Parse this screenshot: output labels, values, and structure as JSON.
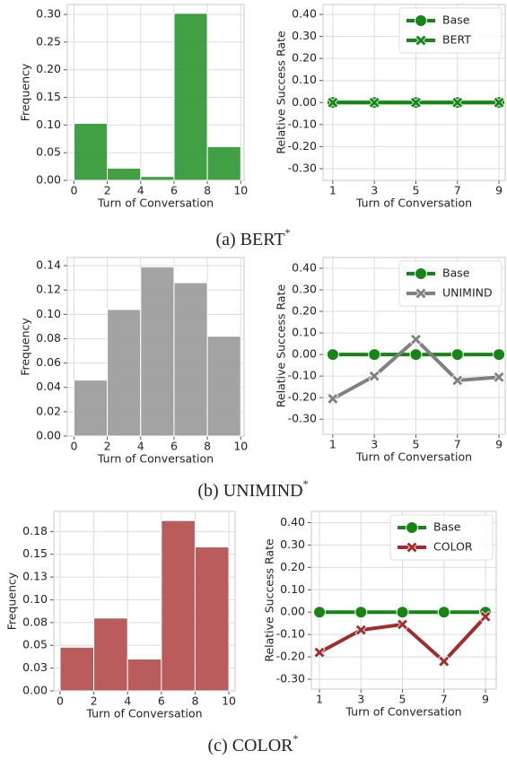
{
  "chart_data": [
    {
      "type": "histogram",
      "xlabel": "Turn of Conversation",
      "ylabel": "Frequency",
      "bins": [
        0,
        2,
        4,
        6,
        8,
        10
      ],
      "values": [
        0.103,
        0.022,
        0.007,
        0.302,
        0.061
      ],
      "color": "#2e9630",
      "xlim": [
        -0.4,
        10.2
      ],
      "ylim": [
        0,
        0.318
      ],
      "xticks": [
        0,
        2,
        4,
        6,
        8,
        10
      ],
      "yticks": [
        {
          "value": 0,
          "label": "0.00"
        },
        {
          "value": 0.05,
          "label": "0.05"
        },
        {
          "value": 0.1,
          "label": "0.10"
        },
        {
          "value": 0.15,
          "label": "0.15"
        },
        {
          "value": 0.2,
          "label": "0.20"
        },
        {
          "value": 0.25,
          "label": "0.25"
        },
        {
          "value": 0.3,
          "label": "0.30"
        }
      ],
      "grid": true
    },
    {
      "type": "line",
      "xlabel": "Turn of Conversation",
      "ylabel": "Relative Success Rate",
      "x": [
        1,
        3,
        5,
        7,
        9
      ],
      "series": [
        {
          "name": "Base",
          "color": "#138613",
          "marker": "o",
          "values": [
            0,
            0,
            0,
            0,
            0
          ]
        },
        {
          "name": "BERT",
          "color": "#138613",
          "marker": "X",
          "values": [
            0,
            0,
            0,
            0,
            0
          ]
        }
      ],
      "xlim": [
        0.53,
        9.3
      ],
      "ylim": [
        -0.353,
        0.445
      ],
      "xticks": [
        1,
        3,
        5,
        7,
        9
      ],
      "yticks": [
        {
          "value": -0.3,
          "label": "-0.30"
        },
        {
          "value": -0.2,
          "label": "-0.20"
        },
        {
          "value": -0.1,
          "label": "-0.10"
        },
        {
          "value": 0,
          "label": "0.00"
        },
        {
          "value": 0.1,
          "label": "0.10"
        },
        {
          "value": 0.2,
          "label": "0.20"
        },
        {
          "value": 0.3,
          "label": "0.30"
        },
        {
          "value": 0.4,
          "label": "0.40"
        }
      ],
      "grid": true,
      "legend": "upper right"
    },
    {
      "type": "histogram",
      "xlabel": "Turn of Conversation",
      "ylabel": "Frequency",
      "bins": [
        0,
        2,
        4,
        6,
        8,
        10
      ],
      "values": [
        0.046,
        0.104,
        0.139,
        0.126,
        0.082
      ],
      "color": "#999999",
      "xlim": [
        -0.4,
        10.2
      ],
      "ylim": [
        0,
        0.1467
      ],
      "xticks": [
        0,
        2,
        4,
        6,
        8,
        10
      ],
      "yticks": [
        {
          "value": 0,
          "label": "0.00"
        },
        {
          "value": 0.02,
          "label": "0.02"
        },
        {
          "value": 0.04,
          "label": "0.04"
        },
        {
          "value": 0.06,
          "label": "0.06"
        },
        {
          "value": 0.08,
          "label": "0.08"
        },
        {
          "value": 0.1,
          "label": "0.10"
        },
        {
          "value": 0.12,
          "label": "0.12"
        },
        {
          "value": 0.14,
          "label": "0.14"
        }
      ],
      "grid": true
    },
    {
      "type": "line",
      "xlabel": "Turn of Conversation",
      "ylabel": "Relative Success Rate",
      "x": [
        1,
        3,
        5,
        7,
        9
      ],
      "series": [
        {
          "name": "Base",
          "color": "#138613",
          "marker": "o",
          "values": [
            0,
            0,
            0,
            0,
            0
          ]
        },
        {
          "name": "UNIMIND",
          "color": "#808080",
          "marker": "X",
          "values": [
            -0.205,
            -0.1,
            0.07,
            -0.12,
            -0.105
          ]
        }
      ],
      "xlim": [
        0.53,
        9.3
      ],
      "ylim": [
        -0.37,
        0.45
      ],
      "xticks": [
        1,
        3,
        5,
        7,
        9
      ],
      "yticks": [
        {
          "value": -0.3,
          "label": "-0.30"
        },
        {
          "value": -0.2,
          "label": "-0.20"
        },
        {
          "value": -0.1,
          "label": "-0.10"
        },
        {
          "value": 0,
          "label": "0.00"
        },
        {
          "value": 0.1,
          "label": "0.10"
        },
        {
          "value": 0.2,
          "label": "0.20"
        },
        {
          "value": 0.3,
          "label": "0.30"
        },
        {
          "value": 0.4,
          "label": "0.40"
        }
      ],
      "grid": true,
      "legend": "upper right"
    },
    {
      "type": "histogram",
      "xlabel": "Turn of Conversation",
      "ylabel": "Frequency",
      "bins": [
        0,
        2,
        4,
        6,
        8,
        10
      ],
      "values": [
        0.048,
        0.08,
        0.035,
        0.187,
        0.158
      ],
      "color": "#b34a4a",
      "xlim": [
        -0.37,
        10.37
      ],
      "ylim": [
        0,
        0.197
      ],
      "xticks": [
        0,
        2,
        4,
        6,
        8,
        10
      ],
      "yticks": [
        {
          "value": 0,
          "label": "0.00"
        },
        {
          "value": 0.025,
          "label": "0.03"
        },
        {
          "value": 0.05,
          "label": "0.05"
        },
        {
          "value": 0.075,
          "label": "0.08"
        },
        {
          "value": 0.1,
          "label": "0.10"
        },
        {
          "value": 0.125,
          "label": "0.13"
        },
        {
          "value": 0.15,
          "label": "0.15"
        },
        {
          "value": 0.175,
          "label": "0.18"
        }
      ],
      "grid": true
    },
    {
      "type": "line",
      "xlabel": "Turn of Conversation",
      "ylabel": "Relative Success Rate",
      "x": [
        1,
        3,
        5,
        7,
        9
      ],
      "series": [
        {
          "name": "Base",
          "color": "#138613",
          "marker": "o",
          "values": [
            0,
            0,
            0,
            0,
            0
          ]
        },
        {
          "name": "COLOR",
          "color": "#a52a2a",
          "marker": "X",
          "values": [
            -0.18,
            -0.08,
            -0.055,
            -0.22,
            -0.02
          ]
        }
      ],
      "xlim": [
        0.61,
        9.52
      ],
      "ylim": [
        -0.344,
        0.45
      ],
      "xticks": [
        1,
        3,
        5,
        7,
        9
      ],
      "yticks": [
        {
          "value": -0.3,
          "label": "-0.30"
        },
        {
          "value": -0.2,
          "label": "-0.20"
        },
        {
          "value": -0.1,
          "label": "-0.10"
        },
        {
          "value": 0,
          "label": "0.00"
        },
        {
          "value": 0.1,
          "label": "0.10"
        },
        {
          "value": 0.2,
          "label": "0.20"
        },
        {
          "value": 0.3,
          "label": "0.30"
        },
        {
          "value": 0.4,
          "label": "0.40"
        }
      ],
      "grid": true,
      "legend": "upper right"
    }
  ],
  "captions": [
    {
      "text": "(a) BERT",
      "sup": "*"
    },
    {
      "text": "(b) UNIMIND",
      "sup": "*"
    },
    {
      "text": "(c) COLOR",
      "sup": "*"
    }
  ]
}
